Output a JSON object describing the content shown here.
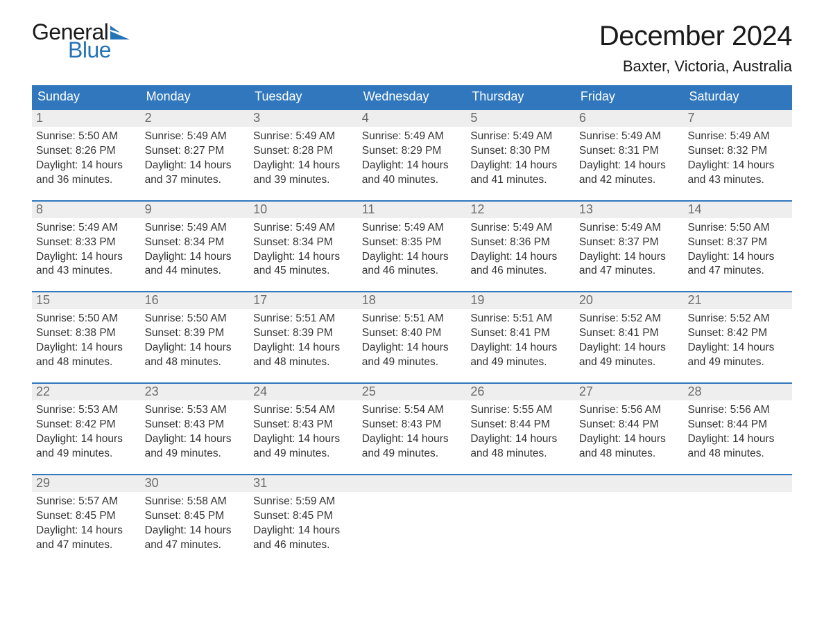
{
  "brand": {
    "word1": "General",
    "word2": "Blue",
    "text_color": "#1a1a1a",
    "blue_color": "#2573b8",
    "flag_color": "#2573b8"
  },
  "title": "December 2024",
  "location": "Baxter, Victoria, Australia",
  "colors": {
    "header_bg": "#3077bd",
    "header_text": "#ffffff",
    "week_border": "#3077bd",
    "daynum_bg": "#eeeeee",
    "daynum_text": "#6b6b6b",
    "body_text": "#333333",
    "page_bg": "#ffffff"
  },
  "day_names": [
    "Sunday",
    "Monday",
    "Tuesday",
    "Wednesday",
    "Thursday",
    "Friday",
    "Saturday"
  ],
  "weeks": [
    [
      {
        "n": "1",
        "sunrise": "5:50 AM",
        "sunset": "8:26 PM",
        "daylight": "14 hours and 36 minutes."
      },
      {
        "n": "2",
        "sunrise": "5:49 AM",
        "sunset": "8:27 PM",
        "daylight": "14 hours and 37 minutes."
      },
      {
        "n": "3",
        "sunrise": "5:49 AM",
        "sunset": "8:28 PM",
        "daylight": "14 hours and 39 minutes."
      },
      {
        "n": "4",
        "sunrise": "5:49 AM",
        "sunset": "8:29 PM",
        "daylight": "14 hours and 40 minutes."
      },
      {
        "n": "5",
        "sunrise": "5:49 AM",
        "sunset": "8:30 PM",
        "daylight": "14 hours and 41 minutes."
      },
      {
        "n": "6",
        "sunrise": "5:49 AM",
        "sunset": "8:31 PM",
        "daylight": "14 hours and 42 minutes."
      },
      {
        "n": "7",
        "sunrise": "5:49 AM",
        "sunset": "8:32 PM",
        "daylight": "14 hours and 43 minutes."
      }
    ],
    [
      {
        "n": "8",
        "sunrise": "5:49 AM",
        "sunset": "8:33 PM",
        "daylight": "14 hours and 43 minutes."
      },
      {
        "n": "9",
        "sunrise": "5:49 AM",
        "sunset": "8:34 PM",
        "daylight": "14 hours and 44 minutes."
      },
      {
        "n": "10",
        "sunrise": "5:49 AM",
        "sunset": "8:34 PM",
        "daylight": "14 hours and 45 minutes."
      },
      {
        "n": "11",
        "sunrise": "5:49 AM",
        "sunset": "8:35 PM",
        "daylight": "14 hours and 46 minutes."
      },
      {
        "n": "12",
        "sunrise": "5:49 AM",
        "sunset": "8:36 PM",
        "daylight": "14 hours and 46 minutes."
      },
      {
        "n": "13",
        "sunrise": "5:49 AM",
        "sunset": "8:37 PM",
        "daylight": "14 hours and 47 minutes."
      },
      {
        "n": "14",
        "sunrise": "5:50 AM",
        "sunset": "8:37 PM",
        "daylight": "14 hours and 47 minutes."
      }
    ],
    [
      {
        "n": "15",
        "sunrise": "5:50 AM",
        "sunset": "8:38 PM",
        "daylight": "14 hours and 48 minutes."
      },
      {
        "n": "16",
        "sunrise": "5:50 AM",
        "sunset": "8:39 PM",
        "daylight": "14 hours and 48 minutes."
      },
      {
        "n": "17",
        "sunrise": "5:51 AM",
        "sunset": "8:39 PM",
        "daylight": "14 hours and 48 minutes."
      },
      {
        "n": "18",
        "sunrise": "5:51 AM",
        "sunset": "8:40 PM",
        "daylight": "14 hours and 49 minutes."
      },
      {
        "n": "19",
        "sunrise": "5:51 AM",
        "sunset": "8:41 PM",
        "daylight": "14 hours and 49 minutes."
      },
      {
        "n": "20",
        "sunrise": "5:52 AM",
        "sunset": "8:41 PM",
        "daylight": "14 hours and 49 minutes."
      },
      {
        "n": "21",
        "sunrise": "5:52 AM",
        "sunset": "8:42 PM",
        "daylight": "14 hours and 49 minutes."
      }
    ],
    [
      {
        "n": "22",
        "sunrise": "5:53 AM",
        "sunset": "8:42 PM",
        "daylight": "14 hours and 49 minutes."
      },
      {
        "n": "23",
        "sunrise": "5:53 AM",
        "sunset": "8:43 PM",
        "daylight": "14 hours and 49 minutes."
      },
      {
        "n": "24",
        "sunrise": "5:54 AM",
        "sunset": "8:43 PM",
        "daylight": "14 hours and 49 minutes."
      },
      {
        "n": "25",
        "sunrise": "5:54 AM",
        "sunset": "8:43 PM",
        "daylight": "14 hours and 49 minutes."
      },
      {
        "n": "26",
        "sunrise": "5:55 AM",
        "sunset": "8:44 PM",
        "daylight": "14 hours and 48 minutes."
      },
      {
        "n": "27",
        "sunrise": "5:56 AM",
        "sunset": "8:44 PM",
        "daylight": "14 hours and 48 minutes."
      },
      {
        "n": "28",
        "sunrise": "5:56 AM",
        "sunset": "8:44 PM",
        "daylight": "14 hours and 48 minutes."
      }
    ],
    [
      {
        "n": "29",
        "sunrise": "5:57 AM",
        "sunset": "8:45 PM",
        "daylight": "14 hours and 47 minutes."
      },
      {
        "n": "30",
        "sunrise": "5:58 AM",
        "sunset": "8:45 PM",
        "daylight": "14 hours and 47 minutes."
      },
      {
        "n": "31",
        "sunrise": "5:59 AM",
        "sunset": "8:45 PM",
        "daylight": "14 hours and 46 minutes."
      },
      null,
      null,
      null,
      null
    ]
  ],
  "labels": {
    "sunrise": "Sunrise:",
    "sunset": "Sunset:",
    "daylight": "Daylight:"
  }
}
